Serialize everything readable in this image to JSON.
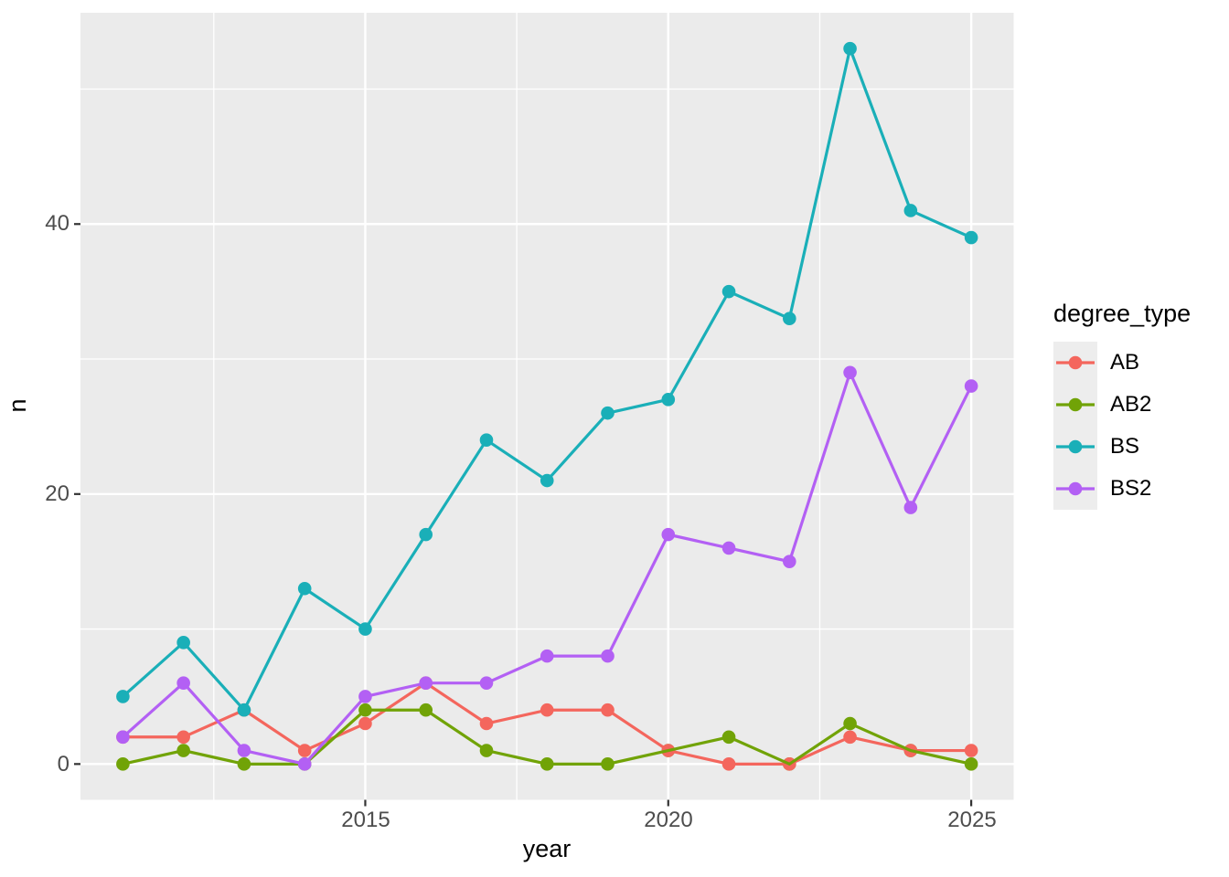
{
  "figure": {
    "background": "#FFFFFF",
    "panel_background": "#EBEBEB",
    "grid_color": "#FFFFFF",
    "tick_mark_color": "#333333",
    "tick_label_color": "#4D4D4D",
    "axis_title_color": "#000000",
    "legend_key_background": "#EDEDED"
  },
  "chart_data": {
    "type": "line",
    "title": "",
    "xlabel": "year",
    "ylabel": "n",
    "x": [
      2011,
      2012,
      2013,
      2014,
      2015,
      2016,
      2017,
      2018,
      2019,
      2020,
      2021,
      2022,
      2023,
      2024,
      2025
    ],
    "series": [
      {
        "name": "AB",
        "color": "#F4665D",
        "values": [
          2,
          2,
          4,
          1,
          3,
          6,
          3,
          4,
          4,
          1,
          0,
          0,
          2,
          1,
          1
        ]
      },
      {
        "name": "AB2",
        "color": "#71A307",
        "values": [
          0,
          1,
          0,
          0,
          4,
          4,
          1,
          0,
          0,
          1,
          2,
          0,
          3,
          1,
          0
        ]
      },
      {
        "name": "BS",
        "color": "#1AAFB8",
        "values": [
          5,
          9,
          4,
          13,
          10,
          17,
          24,
          21,
          26,
          27,
          35,
          33,
          53,
          41,
          39
        ]
      },
      {
        "name": "BS2",
        "color": "#B360F4",
        "values": [
          2,
          6,
          1,
          0,
          5,
          6,
          6,
          8,
          8,
          17,
          16,
          15,
          29,
          19,
          28
        ]
      }
    ],
    "x_ticks": [
      {
        "value": 2015,
        "label": "2015"
      },
      {
        "value": 2020,
        "label": "2020"
      },
      {
        "value": 2025,
        "label": "2025"
      }
    ],
    "y_ticks": [
      {
        "value": 0,
        "label": "0"
      },
      {
        "value": 20,
        "label": "20"
      },
      {
        "value": 40,
        "label": "40"
      }
    ],
    "x_minor": [
      2012.5,
      2017.5,
      2022.5
    ],
    "y_minor": [
      10,
      30,
      50
    ],
    "xlim": [
      2010.3,
      2025.7
    ],
    "ylim": [
      -2.65,
      55.65
    ],
    "grid": true,
    "legend": {
      "title": "degree_type",
      "position": "right"
    }
  }
}
